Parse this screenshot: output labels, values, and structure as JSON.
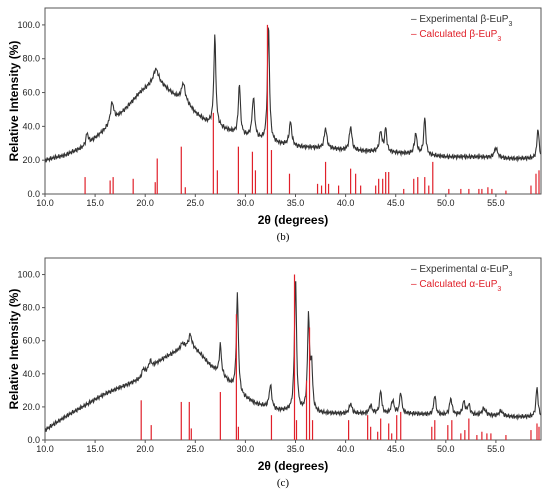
{
  "chart_data": [
    {
      "panel_label": "(b)",
      "type": "line",
      "xlabel": "2θ (degrees)",
      "ylabel": "Relative Intensity (%)",
      "xlim": [
        10.0,
        59.5
      ],
      "ylim": [
        0,
        110
      ],
      "x_ticks": [
        10.0,
        15.0,
        20.0,
        25.0,
        30.0,
        35.0,
        40.0,
        45.0,
        50.0,
        55.0
      ],
      "y_ticks": [
        0.0,
        20.0,
        40.0,
        60.0,
        80.0,
        100.0
      ],
      "x_tick_labels": [
        "10.0",
        "15.0",
        "20.0",
        "25.0",
        "30.0",
        "35.0",
        "40.0",
        "45.0",
        "50.0",
        "55.0"
      ],
      "y_tick_labels": [
        "0.0",
        "20.0",
        "40.0",
        "60.0",
        "80.0",
        "100.0"
      ],
      "grid": false,
      "legend_position": "top-right",
      "series": [
        {
          "name": "Experimental β-EuP₃",
          "legend_prefix": "–",
          "legend_main": "Experimental β-EuP",
          "legend_sub": "3",
          "color": "#333333",
          "style": "line",
          "background": [
            [
              10,
              20
            ],
            [
              12,
              23
            ],
            [
              14,
              28
            ],
            [
              16,
              38
            ],
            [
              18,
              50
            ],
            [
              19.5,
              60
            ],
            [
              21,
              67
            ],
            [
              22,
              63
            ],
            [
              23,
              58
            ],
            [
              24,
              55
            ],
            [
              25,
              48
            ],
            [
              26,
              43
            ],
            [
              28,
              38
            ],
            [
              30,
              34
            ],
            [
              32,
              31
            ],
            [
              35,
              28
            ],
            [
              38,
              27
            ],
            [
              40,
              26
            ],
            [
              43,
              25
            ],
            [
              46,
              24
            ],
            [
              50,
              22
            ],
            [
              53,
              22
            ],
            [
              56,
              21
            ],
            [
              59.5,
              21
            ]
          ],
          "peaks": [
            [
              14.2,
              7,
              0.15
            ],
            [
              16.7,
              12,
              0.2
            ],
            [
              21.1,
              7,
              0.3
            ],
            [
              23.8,
              10,
              0.2
            ],
            [
              26.95,
              53,
              0.12
            ],
            [
              29.4,
              30,
              0.12
            ],
            [
              30.8,
              24,
              0.15
            ],
            [
              32.3,
              70,
              0.12
            ],
            [
              34.5,
              14,
              0.15
            ],
            [
              38.0,
              12,
              0.15
            ],
            [
              40.5,
              14,
              0.15
            ],
            [
              43.5,
              12,
              0.15
            ],
            [
              44.0,
              14,
              0.12
            ],
            [
              47.0,
              12,
              0.15
            ],
            [
              47.9,
              22,
              0.12
            ],
            [
              55.0,
              6,
              0.2
            ],
            [
              59.2,
              18,
              0.12
            ]
          ]
        },
        {
          "name": "Calculated β-EuP₃",
          "legend_prefix": "–",
          "legend_main": "Calculated β-EuP",
          "legend_sub": "3",
          "color": "#e0202a",
          "style": "sticks",
          "sticks": [
            [
              14.0,
              10
            ],
            [
              16.5,
              8
            ],
            [
              16.8,
              10
            ],
            [
              18.8,
              9
            ],
            [
              21.0,
              7
            ],
            [
              21.2,
              21
            ],
            [
              23.6,
              28
            ],
            [
              24.0,
              4
            ],
            [
              26.8,
              48
            ],
            [
              27.2,
              14
            ],
            [
              29.3,
              28
            ],
            [
              30.7,
              25
            ],
            [
              31.0,
              14
            ],
            [
              32.2,
              100
            ],
            [
              32.6,
              26
            ],
            [
              34.4,
              12
            ],
            [
              37.2,
              6
            ],
            [
              37.6,
              5
            ],
            [
              38.0,
              19
            ],
            [
              38.3,
              6
            ],
            [
              39.3,
              5
            ],
            [
              40.5,
              15
            ],
            [
              41.0,
              12
            ],
            [
              41.5,
              5
            ],
            [
              43.0,
              5
            ],
            [
              43.3,
              9
            ],
            [
              43.7,
              9
            ],
            [
              44.0,
              13
            ],
            [
              44.3,
              13
            ],
            [
              45.8,
              3
            ],
            [
              46.8,
              9
            ],
            [
              47.2,
              10
            ],
            [
              47.9,
              10
            ],
            [
              48.3,
              5
            ],
            [
              48.7,
              19
            ],
            [
              50.3,
              3
            ],
            [
              51.5,
              3
            ],
            [
              52.3,
              3
            ],
            [
              53.3,
              3
            ],
            [
              53.6,
              3
            ],
            [
              54.2,
              4
            ],
            [
              54.6,
              3
            ],
            [
              56.0,
              2
            ],
            [
              58.5,
              5
            ],
            [
              59.0,
              12
            ],
            [
              59.3,
              14
            ]
          ]
        }
      ]
    },
    {
      "panel_label": "(c)",
      "type": "line",
      "xlabel": "2θ (degrees)",
      "ylabel": "Relative Intensity (%)",
      "xlim": [
        10.0,
        59.5
      ],
      "ylim": [
        0,
        110
      ],
      "x_ticks": [
        10.0,
        15.0,
        20.0,
        25.0,
        30.0,
        35.0,
        40.0,
        45.0,
        50.0,
        55.0
      ],
      "y_ticks": [
        0.0,
        20.0,
        40.0,
        60.0,
        80.0,
        100.0
      ],
      "x_tick_labels": [
        "10.0",
        "15.0",
        "20.0",
        "25.0",
        "30.0",
        "35.0",
        "40.0",
        "45.0",
        "50.0",
        "55.0"
      ],
      "y_tick_labels": [
        "0.0",
        "20.0",
        "40.0",
        "60.0",
        "80.0",
        "100.0"
      ],
      "grid": false,
      "legend_position": "top-right",
      "series": [
        {
          "name": "Experimental α-EuP₃",
          "legend_prefix": "–",
          "legend_main": "Experimental α-EuP",
          "legend_sub": "3",
          "color": "#333333",
          "style": "line",
          "background": [
            [
              10,
              6
            ],
            [
              12,
              14
            ],
            [
              14,
              21
            ],
            [
              16,
              28
            ],
            [
              18,
              33
            ],
            [
              19.5,
              37
            ],
            [
              20.5,
              44
            ],
            [
              22,
              50
            ],
            [
              23.5,
              55
            ],
            [
              24.5,
              58
            ],
            [
              25.5,
              52
            ],
            [
              26.5,
              45
            ],
            [
              28,
              37
            ],
            [
              29.5,
              27
            ],
            [
              31,
              22
            ],
            [
              33,
              18
            ],
            [
              35,
              17
            ],
            [
              38,
              16
            ],
            [
              42,
              16
            ],
            [
              46,
              16
            ],
            [
              50,
              15
            ],
            [
              54,
              15
            ],
            [
              57,
              14
            ],
            [
              59.5,
              14
            ]
          ],
          "peaks": [
            [
              19.8,
              4,
              0.15
            ],
            [
              20.5,
              4,
              0.15
            ],
            [
              23.7,
              3,
              0.15
            ],
            [
              24.5,
              6,
              0.15
            ],
            [
              27.5,
              18,
              0.12
            ],
            [
              29.2,
              59,
              0.12
            ],
            [
              32.5,
              14,
              0.15
            ],
            [
              35.0,
              82,
              0.12
            ],
            [
              36.3,
              57,
              0.12
            ],
            [
              36.6,
              27,
              0.12
            ],
            [
              40.5,
              6,
              0.15
            ],
            [
              42.5,
              5,
              0.15
            ],
            [
              43.5,
              14,
              0.12
            ],
            [
              44.7,
              8,
              0.15
            ],
            [
              45.5,
              13,
              0.12
            ],
            [
              48.9,
              12,
              0.12
            ],
            [
              50.5,
              10,
              0.15
            ],
            [
              51.8,
              8,
              0.15
            ],
            [
              52.3,
              6,
              0.15
            ],
            [
              53.8,
              4,
              0.2
            ],
            [
              55.5,
              3,
              0.2
            ],
            [
              59.1,
              18,
              0.12
            ]
          ]
        },
        {
          "name": "Calculated α-EuP₃",
          "legend_prefix": "–",
          "legend_main": "Calculated α-EuP",
          "legend_sub": "3",
          "color": "#e0202a",
          "style": "sticks",
          "sticks": [
            [
              19.6,
              24
            ],
            [
              20.6,
              9
            ],
            [
              23.6,
              23
            ],
            [
              24.4,
              23
            ],
            [
              24.6,
              7
            ],
            [
              27.5,
              29
            ],
            [
              29.1,
              76
            ],
            [
              29.3,
              8
            ],
            [
              32.6,
              15
            ],
            [
              34.9,
              100
            ],
            [
              35.1,
              12
            ],
            [
              36.1,
              36
            ],
            [
              36.4,
              68
            ],
            [
              36.7,
              12
            ],
            [
              40.3,
              12
            ],
            [
              42.2,
              15
            ],
            [
              42.5,
              8
            ],
            [
              43.2,
              5
            ],
            [
              43.5,
              13
            ],
            [
              44.3,
              10
            ],
            [
              44.6,
              4
            ],
            [
              45.1,
              15
            ],
            [
              45.5,
              17
            ],
            [
              48.6,
              8
            ],
            [
              48.9,
              12
            ],
            [
              50.2,
              9
            ],
            [
              50.6,
              12
            ],
            [
              51.5,
              4
            ],
            [
              51.9,
              6
            ],
            [
              52.3,
              13
            ],
            [
              53.1,
              3
            ],
            [
              53.6,
              5
            ],
            [
              54.1,
              4
            ],
            [
              54.5,
              4
            ],
            [
              56.0,
              3
            ],
            [
              58.5,
              6
            ],
            [
              59.1,
              10
            ],
            [
              59.3,
              8
            ]
          ]
        }
      ]
    }
  ]
}
